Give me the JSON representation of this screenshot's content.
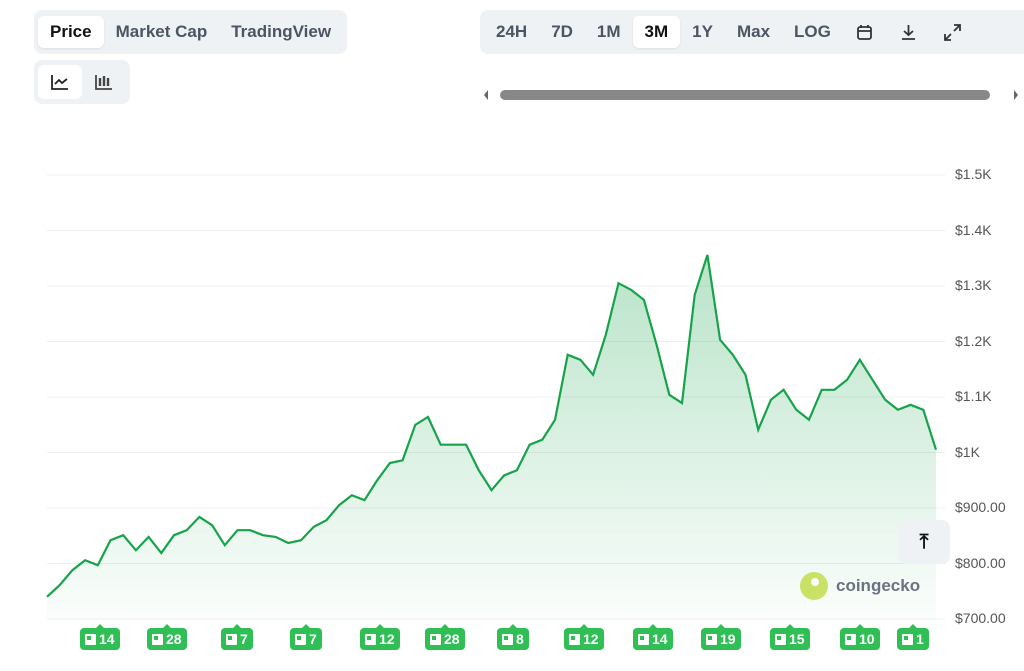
{
  "tabs": [
    {
      "label": "Price",
      "active": true
    },
    {
      "label": "Market Cap"
    },
    {
      "label": "TradingView"
    }
  ],
  "chart_types": [
    {
      "icon": "line-chart-icon",
      "active": true
    },
    {
      "icon": "candlestick-icon"
    }
  ],
  "ranges": [
    {
      "label": "24H"
    },
    {
      "label": "7D"
    },
    {
      "label": "1M"
    },
    {
      "label": "3M",
      "active": true
    },
    {
      "label": "1Y"
    },
    {
      "label": "Max"
    },
    {
      "label": "LOG"
    }
  ],
  "tools": [
    "calendar-icon",
    "download-icon",
    "fullscreen-icon"
  ],
  "watermark": "coingecko",
  "news_badges": [
    "14",
    "28",
    "7",
    "7",
    "12",
    "28",
    "8",
    "12",
    "14",
    "19",
    "15",
    "10",
    "1"
  ],
  "colors": {
    "line": "#16a34a",
    "badge": "#2fbf55"
  },
  "chart_data": {
    "type": "area",
    "yticks": [
      "$700.00",
      "$800.00",
      "$900.00",
      "$1K",
      "$1.1K",
      "$1.2K",
      "$1.3K",
      "$1.4K",
      "$1.5K"
    ],
    "ylim": [
      700,
      1500
    ],
    "grid": true,
    "values": [
      740,
      761,
      788,
      806,
      797,
      842,
      851,
      824,
      848,
      819,
      851,
      860,
      884,
      869,
      833,
      860,
      860,
      851,
      848,
      837,
      842,
      866,
      878,
      905,
      923,
      914,
      950,
      981,
      986,
      1050,
      1064,
      1014,
      1014,
      1014,
      968,
      932,
      959,
      968,
      1014,
      1023,
      1059,
      1176,
      1167,
      1140,
      1212,
      1305,
      1293,
      1275,
      1194,
      1104,
      1089,
      1284,
      1356,
      1203,
      1176,
      1140,
      1041,
      1095,
      1113,
      1077,
      1059,
      1113,
      1113,
      1131,
      1167,
      1131,
      1095,
      1077,
      1086,
      1077,
      1005
    ]
  }
}
